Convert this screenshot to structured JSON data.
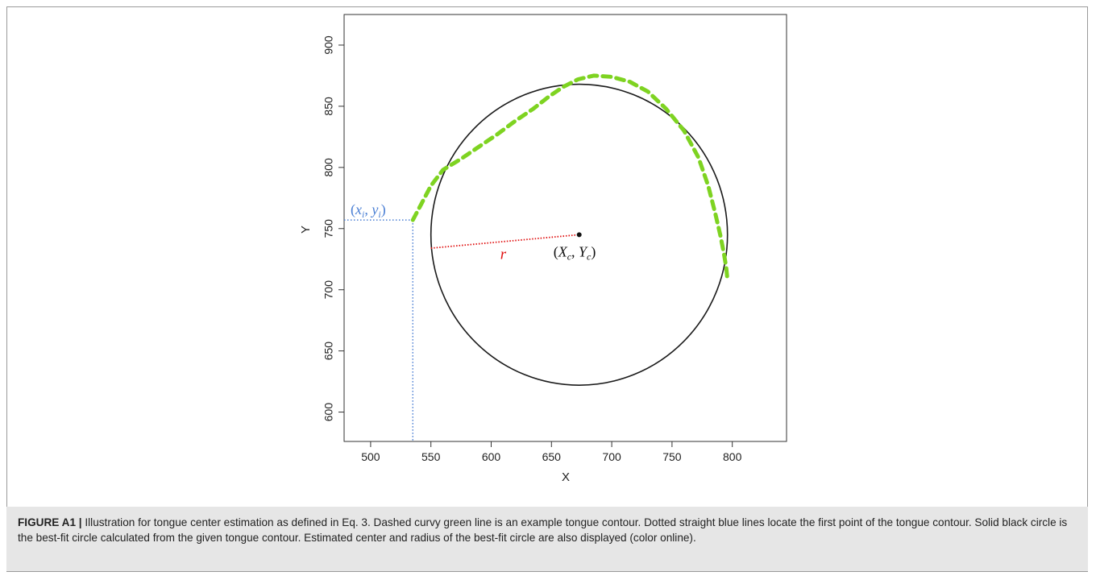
{
  "chart_data": {
    "type": "scatter",
    "xlabel": "X",
    "ylabel": "Y",
    "xlim": [
      478,
      845
    ],
    "ylim": [
      576,
      925
    ],
    "xticks": [
      500,
      550,
      600,
      650,
      700,
      750,
      800
    ],
    "yticks": [
      600,
      650,
      700,
      750,
      800,
      850,
      900
    ],
    "grid": false,
    "tongue_contour": {
      "color": "#7ED321",
      "style": "dashed",
      "x": [
        535,
        542,
        550,
        560,
        575,
        590,
        605,
        620,
        635,
        648,
        660,
        672,
        685,
        700,
        715,
        730,
        745,
        760,
        772,
        780,
        786,
        790,
        793,
        795,
        796
      ],
      "y": [
        757,
        770,
        785,
        798,
        807,
        817,
        827,
        838,
        848,
        858,
        866,
        872,
        875,
        874,
        870,
        862,
        848,
        830,
        808,
        785,
        762,
        745,
        730,
        718,
        708
      ]
    },
    "circle": {
      "center": [
        673,
        745
      ],
      "radius": 123,
      "color": "#1a1a1a"
    },
    "first_point": {
      "x": 535,
      "y": 757,
      "color": "#4a7fd4",
      "label_x": "x",
      "label_y": "y",
      "label_sub": "i"
    },
    "center_point": {
      "x": 673,
      "y": 745,
      "label_x": "X",
      "label_y": "Y",
      "label_sub": "c"
    },
    "radius_line": {
      "from": [
        550,
        734
      ],
      "to": [
        673,
        745
      ],
      "color": "#e01010",
      "label": "r"
    }
  },
  "caption": {
    "label": "FIGURE A1 |",
    "text": " Illustration for tongue center estimation as defined in Eq. 3. Dashed curvy green line is an example tongue contour. Dotted straight blue lines locate the first point of the tongue contour. Solid black circle is the best-fit circle calculated from the given tongue contour. Estimated center and radius of the best-fit circle are also displayed (color online)."
  }
}
